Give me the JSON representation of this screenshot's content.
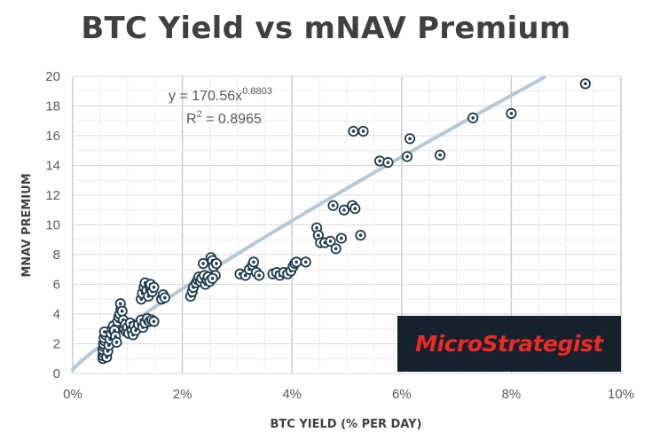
{
  "title": "BTC Yield vs mNAV Premium",
  "logo": {
    "text": "MicroStrategist"
  },
  "colors": {
    "marker": "#1f3b4d",
    "trendline": "#b5c8d3",
    "grid": "#d9d9d9",
    "logo_bg": "#16212f",
    "logo_text": "#ee2a24"
  },
  "chart_data": {
    "type": "scatter",
    "title": "BTC Yield vs mNAV Premium",
    "xlabel": "BTC YIELD (% PER DAY)",
    "ylabel": "MNAV PREMIUM",
    "xlim": [
      0,
      10
    ],
    "ylim": [
      0,
      20
    ],
    "x_ticks": [
      0,
      2,
      4,
      6,
      8,
      10
    ],
    "x_tick_labels": [
      "0%",
      "2%",
      "4%",
      "6%",
      "8%",
      "10%"
    ],
    "y_ticks": [
      0,
      2,
      4,
      6,
      8,
      10,
      12,
      14,
      16,
      18,
      20
    ],
    "y_tick_labels": [
      "0",
      "2",
      "4",
      "6",
      "8",
      "10",
      "12",
      "14",
      "16",
      "18",
      "20"
    ],
    "grid": true,
    "marker": "circle-dot",
    "trendline": {
      "type": "power",
      "coefficient": 170.56,
      "exponent": 0.8803,
      "equation_prefix": "y = 170.56x",
      "equation_exponent": "0.8803",
      "r2_prefix": "R",
      "r2_exponent": "2",
      "r2_suffix": " = 0.8965"
    },
    "points": [
      [
        0.55,
        1.0
      ],
      [
        0.55,
        1.2
      ],
      [
        0.56,
        1.4
      ],
      [
        0.55,
        1.6
      ],
      [
        0.57,
        1.8
      ],
      [
        0.56,
        2.0
      ],
      [
        0.58,
        2.2
      ],
      [
        0.57,
        2.4
      ],
      [
        0.6,
        2.6
      ],
      [
        0.58,
        2.8
      ],
      [
        0.62,
        1.1
      ],
      [
        0.64,
        1.5
      ],
      [
        0.66,
        1.9
      ],
      [
        0.68,
        2.3
      ],
      [
        0.7,
        2.7
      ],
      [
        0.72,
        3.0
      ],
      [
        0.74,
        3.2
      ],
      [
        0.76,
        2.9
      ],
      [
        0.78,
        2.5
      ],
      [
        0.8,
        2.1
      ],
      [
        0.82,
        3.5
      ],
      [
        0.84,
        3.8
      ],
      [
        0.86,
        4.0
      ],
      [
        0.88,
        4.3
      ],
      [
        0.87,
        4.7
      ],
      [
        0.9,
        4.2
      ],
      [
        0.92,
        3.6
      ],
      [
        0.94,
        3.0
      ],
      [
        0.96,
        3.3
      ],
      [
        0.98,
        2.8
      ],
      [
        1.0,
        3.1
      ],
      [
        1.02,
        2.7
      ],
      [
        1.05,
        3.4
      ],
      [
        1.08,
        2.9
      ],
      [
        1.1,
        2.6
      ],
      [
        1.12,
        3.2
      ],
      [
        1.15,
        2.9
      ],
      [
        1.2,
        3.3
      ],
      [
        1.25,
        3.6
      ],
      [
        1.28,
        3.1
      ],
      [
        1.25,
        5.0
      ],
      [
        1.27,
        5.4
      ],
      [
        1.3,
        5.8
      ],
      [
        1.32,
        6.1
      ],
      [
        1.35,
        5.6
      ],
      [
        1.38,
        5.2
      ],
      [
        1.4,
        5.9
      ],
      [
        1.42,
        6.0
      ],
      [
        1.45,
        5.5
      ],
      [
        1.48,
        5.8
      ],
      [
        1.32,
        3.4
      ],
      [
        1.36,
        3.7
      ],
      [
        1.4,
        3.5
      ],
      [
        1.44,
        3.6
      ],
      [
        1.48,
        3.5
      ],
      [
        1.62,
        5.0
      ],
      [
        1.65,
        5.3
      ],
      [
        1.68,
        5.1
      ],
      [
        2.15,
        5.2
      ],
      [
        2.18,
        5.5
      ],
      [
        2.2,
        5.8
      ],
      [
        2.25,
        6.1
      ],
      [
        2.28,
        6.3
      ],
      [
        2.3,
        6.5
      ],
      [
        2.33,
        6.2
      ],
      [
        2.35,
        6.4
      ],
      [
        2.38,
        7.4
      ],
      [
        2.4,
        6.6
      ],
      [
        2.42,
        6.0
      ],
      [
        2.45,
        6.3
      ],
      [
        2.47,
        6.5
      ],
      [
        2.5,
        6.2
      ],
      [
        2.52,
        7.8
      ],
      [
        2.55,
        7.6
      ],
      [
        2.57,
        7.2
      ],
      [
        2.6,
        6.6
      ],
      [
        2.62,
        7.4
      ],
      [
        2.55,
        6.4
      ],
      [
        3.05,
        6.7
      ],
      [
        3.15,
        6.6
      ],
      [
        3.22,
        7.0
      ],
      [
        3.28,
        7.3
      ],
      [
        3.3,
        7.5
      ],
      [
        3.35,
        6.8
      ],
      [
        3.4,
        6.6
      ],
      [
        3.65,
        6.7
      ],
      [
        3.72,
        6.8
      ],
      [
        3.78,
        6.6
      ],
      [
        3.85,
        6.8
      ],
      [
        3.92,
        6.7
      ],
      [
        3.98,
        6.9
      ],
      [
        4.02,
        7.2
      ],
      [
        4.05,
        7.4
      ],
      [
        4.08,
        7.5
      ],
      [
        4.25,
        7.5
      ],
      [
        4.45,
        9.8
      ],
      [
        4.48,
        9.3
      ],
      [
        4.52,
        8.8
      ],
      [
        4.6,
        8.8
      ],
      [
        4.7,
        8.9
      ],
      [
        4.8,
        8.4
      ],
      [
        4.9,
        9.1
      ],
      [
        5.25,
        9.3
      ],
      [
        4.75,
        11.3
      ],
      [
        4.95,
        11.0
      ],
      [
        5.1,
        11.3
      ],
      [
        5.15,
        11.1
      ],
      [
        5.12,
        16.3
      ],
      [
        5.3,
        16.3
      ],
      [
        5.6,
        14.3
      ],
      [
        5.75,
        14.2
      ],
      [
        6.1,
        14.6
      ],
      [
        6.15,
        15.8
      ],
      [
        6.7,
        14.7
      ],
      [
        7.3,
        17.2
      ],
      [
        8.0,
        17.5
      ],
      [
        9.35,
        19.5
      ]
    ]
  }
}
